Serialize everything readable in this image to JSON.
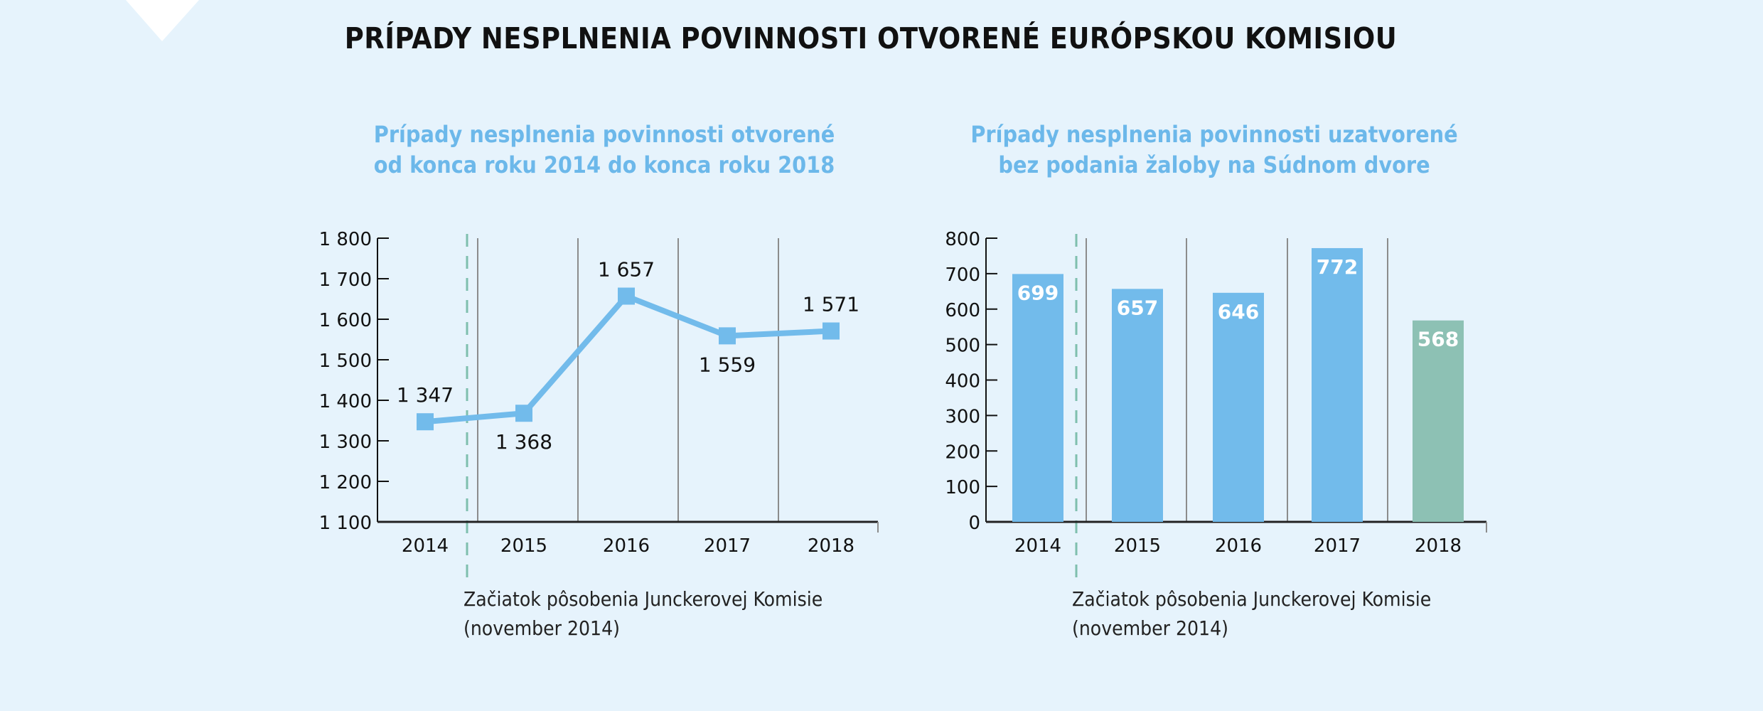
{
  "title": "PRÍPADY NESPLNENIA POVINNOSTI OTVORENÉ EURÓPSKOU KOMISIOU",
  "colors": {
    "background": "#e6f3fc",
    "primary": "#72bbeb",
    "highlight": "#8dc1b4",
    "marker_line": "#7fbfae",
    "grid": "#8c8c8c"
  },
  "chart_data": [
    {
      "type": "line",
      "title_lines": [
        "Prípady nesplnenia povinnosti otvorené",
        "od konca roku 2014 do konca roku 2018"
      ],
      "categories": [
        "2014",
        "2015",
        "2016",
        "2017",
        "2018"
      ],
      "values": [
        1347,
        1368,
        1657,
        1559,
        1571
      ],
      "data_labels": [
        "1 347",
        "1 368",
        "1 657",
        "1 559",
        "1 571"
      ],
      "ylim": [
        1100,
        1800
      ],
      "yticks": [
        "1 100",
        "1 200",
        "1 300",
        "1 400",
        "1 500",
        "1 600",
        "1 700",
        "1 800"
      ],
      "annotation": [
        "Začiatok pôsobenia Junckerovej Komisie",
        "(november 2014)"
      ]
    },
    {
      "type": "bar",
      "title_lines": [
        "Prípady nesplnenia povinnosti uzatvorené",
        "bez podania žaloby na Súdnom dvore"
      ],
      "categories": [
        "2014",
        "2015",
        "2016",
        "2017",
        "2018"
      ],
      "values": [
        699,
        657,
        646,
        772,
        568
      ],
      "data_labels": [
        "699",
        "657",
        "646",
        "772",
        "568"
      ],
      "highlighted_category": "2018",
      "ylim": [
        0,
        800
      ],
      "yticks": [
        "0",
        "100",
        "200",
        "300",
        "400",
        "500",
        "600",
        "700",
        "800"
      ],
      "annotation": [
        "Začiatok pôsobenia Junckerovej Komisie",
        "(november 2014)"
      ]
    }
  ]
}
